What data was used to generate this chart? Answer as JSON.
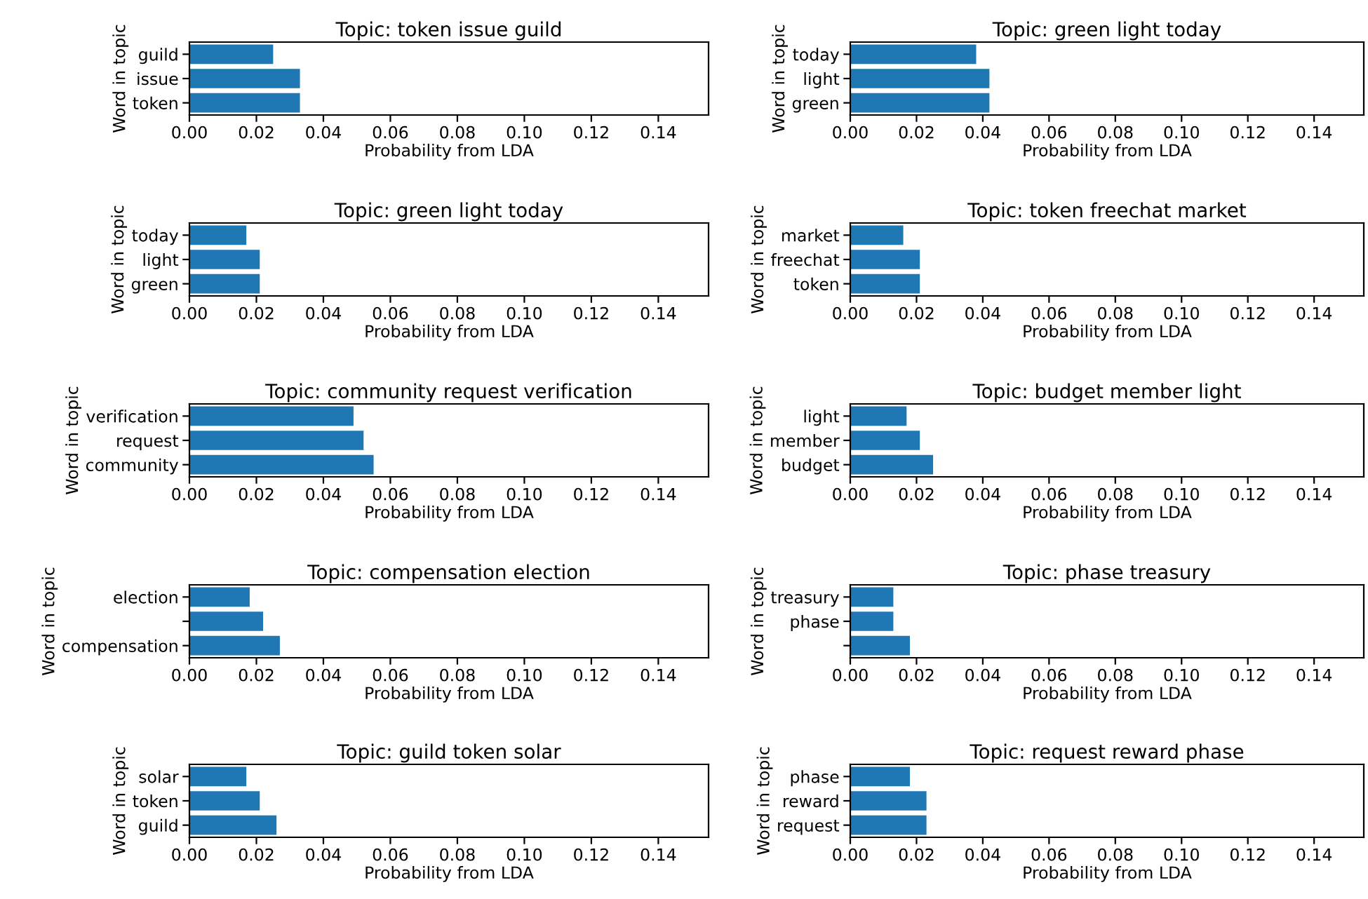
{
  "chart_data": [
    {
      "type": "bar",
      "orientation": "horizontal",
      "title": "Topic: token issue guild",
      "xlabel": "Probability from LDA",
      "ylabel": "Word in topic",
      "categories": [
        "guild",
        "issue",
        "token"
      ],
      "values": [
        0.025,
        0.033,
        0.033
      ],
      "color": "#1f77b4",
      "xlim": [
        0,
        0.155
      ],
      "xticks": [
        {
          "value": 0,
          "label": "0.00"
        },
        {
          "value": 0.02,
          "label": "0.02"
        },
        {
          "value": 0.04,
          "label": "0.04"
        },
        {
          "value": 0.06,
          "label": "0.06"
        },
        {
          "value": 0.08,
          "label": "0.08"
        },
        {
          "value": 0.1,
          "label": "0.10"
        },
        {
          "value": 0.12,
          "label": "0.12"
        },
        {
          "value": 0.14,
          "label": "0.14"
        }
      ]
    },
    {
      "type": "bar",
      "orientation": "horizontal",
      "title": "Topic: green light today",
      "xlabel": "Probability from LDA",
      "ylabel": "Word in topic",
      "categories": [
        "today",
        "light",
        "green"
      ],
      "values": [
        0.038,
        0.042,
        0.042
      ],
      "color": "#1f77b4",
      "xlim": [
        0,
        0.155
      ],
      "xticks": [
        {
          "value": 0,
          "label": "0.00"
        },
        {
          "value": 0.02,
          "label": "0.02"
        },
        {
          "value": 0.04,
          "label": "0.04"
        },
        {
          "value": 0.06,
          "label": "0.06"
        },
        {
          "value": 0.08,
          "label": "0.08"
        },
        {
          "value": 0.1,
          "label": "0.10"
        },
        {
          "value": 0.12,
          "label": "0.12"
        },
        {
          "value": 0.14,
          "label": "0.14"
        }
      ]
    },
    {
      "type": "bar",
      "orientation": "horizontal",
      "title": "Topic: green light today",
      "xlabel": "Probability from LDA",
      "ylabel": "Word in topic",
      "categories": [
        "today",
        "light",
        "green"
      ],
      "values": [
        0.017,
        0.021,
        0.021
      ],
      "color": "#1f77b4",
      "xlim": [
        0,
        0.155
      ],
      "xticks": [
        {
          "value": 0,
          "label": "0.00"
        },
        {
          "value": 0.02,
          "label": "0.02"
        },
        {
          "value": 0.04,
          "label": "0.04"
        },
        {
          "value": 0.06,
          "label": "0.06"
        },
        {
          "value": 0.08,
          "label": "0.08"
        },
        {
          "value": 0.1,
          "label": "0.10"
        },
        {
          "value": 0.12,
          "label": "0.12"
        },
        {
          "value": 0.14,
          "label": "0.14"
        }
      ]
    },
    {
      "type": "bar",
      "orientation": "horizontal",
      "title": "Topic: token freechat market",
      "xlabel": "Probability from LDA",
      "ylabel": "Word in topic",
      "categories": [
        "market",
        "freechat",
        "token"
      ],
      "values": [
        0.016,
        0.021,
        0.021
      ],
      "color": "#1f77b4",
      "xlim": [
        0,
        0.155
      ],
      "xticks": [
        {
          "value": 0,
          "label": "0.00"
        },
        {
          "value": 0.02,
          "label": "0.02"
        },
        {
          "value": 0.04,
          "label": "0.04"
        },
        {
          "value": 0.06,
          "label": "0.06"
        },
        {
          "value": 0.08,
          "label": "0.08"
        },
        {
          "value": 0.1,
          "label": "0.10"
        },
        {
          "value": 0.12,
          "label": "0.12"
        },
        {
          "value": 0.14,
          "label": "0.14"
        }
      ]
    },
    {
      "type": "bar",
      "orientation": "horizontal",
      "title": "Topic: community request verification",
      "xlabel": "Probability from LDA",
      "ylabel": "Word in topic",
      "categories": [
        "verification",
        "request",
        "community"
      ],
      "values": [
        0.049,
        0.052,
        0.055
      ],
      "color": "#1f77b4",
      "xlim": [
        0,
        0.155
      ],
      "xticks": [
        {
          "value": 0,
          "label": "0.00"
        },
        {
          "value": 0.02,
          "label": "0.02"
        },
        {
          "value": 0.04,
          "label": "0.04"
        },
        {
          "value": 0.06,
          "label": "0.06"
        },
        {
          "value": 0.08,
          "label": "0.08"
        },
        {
          "value": 0.1,
          "label": "0.10"
        },
        {
          "value": 0.12,
          "label": "0.12"
        },
        {
          "value": 0.14,
          "label": "0.14"
        }
      ]
    },
    {
      "type": "bar",
      "orientation": "horizontal",
      "title": "Topic: budget member light",
      "xlabel": "Probability from LDA",
      "ylabel": "Word in topic",
      "categories": [
        "light",
        "member",
        "budget"
      ],
      "values": [
        0.017,
        0.021,
        0.025
      ],
      "color": "#1f77b4",
      "xlim": [
        0,
        0.155
      ],
      "xticks": [
        {
          "value": 0,
          "label": "0.00"
        },
        {
          "value": 0.02,
          "label": "0.02"
        },
        {
          "value": 0.04,
          "label": "0.04"
        },
        {
          "value": 0.06,
          "label": "0.06"
        },
        {
          "value": 0.08,
          "label": "0.08"
        },
        {
          "value": 0.1,
          "label": "0.10"
        },
        {
          "value": 0.12,
          "label": "0.12"
        },
        {
          "value": 0.14,
          "label": "0.14"
        }
      ]
    },
    {
      "type": "bar",
      "orientation": "horizontal",
      "title": "Topic: compensation election",
      "xlabel": "Probability from LDA",
      "ylabel": "Word in topic",
      "categories": [
        "election",
        null,
        "compensation"
      ],
      "values": [
        0.018,
        0.022,
        0.027
      ],
      "color": "#1f77b4",
      "xlim": [
        0,
        0.155
      ],
      "xticks": [
        {
          "value": 0,
          "label": "0.00"
        },
        {
          "value": 0.02,
          "label": "0.02"
        },
        {
          "value": 0.04,
          "label": "0.04"
        },
        {
          "value": 0.06,
          "label": "0.06"
        },
        {
          "value": 0.08,
          "label": "0.08"
        },
        {
          "value": 0.1,
          "label": "0.10"
        },
        {
          "value": 0.12,
          "label": "0.12"
        },
        {
          "value": 0.14,
          "label": "0.14"
        }
      ]
    },
    {
      "type": "bar",
      "orientation": "horizontal",
      "title": "Topic: phase treasury",
      "xlabel": "Probability from LDA",
      "ylabel": "Word in topic",
      "categories": [
        "treasury",
        "phase",
        null
      ],
      "values": [
        0.013,
        0.013,
        0.018
      ],
      "color": "#1f77b4",
      "xlim": [
        0,
        0.155
      ],
      "xticks": [
        {
          "value": 0,
          "label": "0.00"
        },
        {
          "value": 0.02,
          "label": "0.02"
        },
        {
          "value": 0.04,
          "label": "0.04"
        },
        {
          "value": 0.06,
          "label": "0.06"
        },
        {
          "value": 0.08,
          "label": "0.08"
        },
        {
          "value": 0.1,
          "label": "0.10"
        },
        {
          "value": 0.12,
          "label": "0.12"
        },
        {
          "value": 0.14,
          "label": "0.14"
        }
      ]
    },
    {
      "type": "bar",
      "orientation": "horizontal",
      "title": "Topic: guild token solar",
      "xlabel": "Probability from LDA",
      "ylabel": "Word in topic",
      "categories": [
        "solar",
        "token",
        "guild"
      ],
      "values": [
        0.017,
        0.021,
        0.026
      ],
      "color": "#1f77b4",
      "xlim": [
        0,
        0.155
      ],
      "xticks": [
        {
          "value": 0,
          "label": "0.00"
        },
        {
          "value": 0.02,
          "label": "0.02"
        },
        {
          "value": 0.04,
          "label": "0.04"
        },
        {
          "value": 0.06,
          "label": "0.06"
        },
        {
          "value": 0.08,
          "label": "0.08"
        },
        {
          "value": 0.1,
          "label": "0.10"
        },
        {
          "value": 0.12,
          "label": "0.12"
        },
        {
          "value": 0.14,
          "label": "0.14"
        }
      ]
    },
    {
      "type": "bar",
      "orientation": "horizontal",
      "title": "Topic: request reward phase",
      "xlabel": "Probability from LDA",
      "ylabel": "Word in topic",
      "categories": [
        "phase",
        "reward",
        "request"
      ],
      "values": [
        0.018,
        0.023,
        0.023
      ],
      "color": "#1f77b4",
      "xlim": [
        0,
        0.155
      ],
      "xticks": [
        {
          "value": 0,
          "label": "0.00"
        },
        {
          "value": 0.02,
          "label": "0.02"
        },
        {
          "value": 0.04,
          "label": "0.04"
        },
        {
          "value": 0.06,
          "label": "0.06"
        },
        {
          "value": 0.08,
          "label": "0.08"
        },
        {
          "value": 0.1,
          "label": "0.10"
        },
        {
          "value": 0.12,
          "label": "0.12"
        },
        {
          "value": 0.14,
          "label": "0.14"
        }
      ]
    }
  ]
}
